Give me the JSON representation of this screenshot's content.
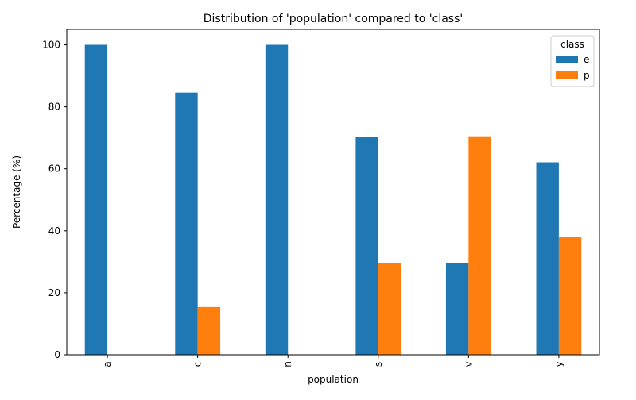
{
  "chart_data": {
    "type": "bar",
    "title": "Distribution of 'population' compared to 'class'",
    "xlabel": "population",
    "ylabel": "Percentage (%)",
    "categories": [
      "a",
      "c",
      "n",
      "s",
      "v",
      "y"
    ],
    "series": [
      {
        "name": "e",
        "color": "#1f77b4",
        "values": [
          100,
          84.6,
          100,
          70.4,
          29.5,
          62.1
        ]
      },
      {
        "name": "p",
        "color": "#ff7f0e",
        "values": [
          0,
          15.4,
          0,
          29.6,
          70.5,
          37.9
        ]
      }
    ],
    "ylim": [
      0,
      105
    ],
    "yticks": [
      0,
      20,
      40,
      60,
      80,
      100
    ],
    "grid": false,
    "legend": {
      "title": "class",
      "position": "top-right"
    }
  }
}
